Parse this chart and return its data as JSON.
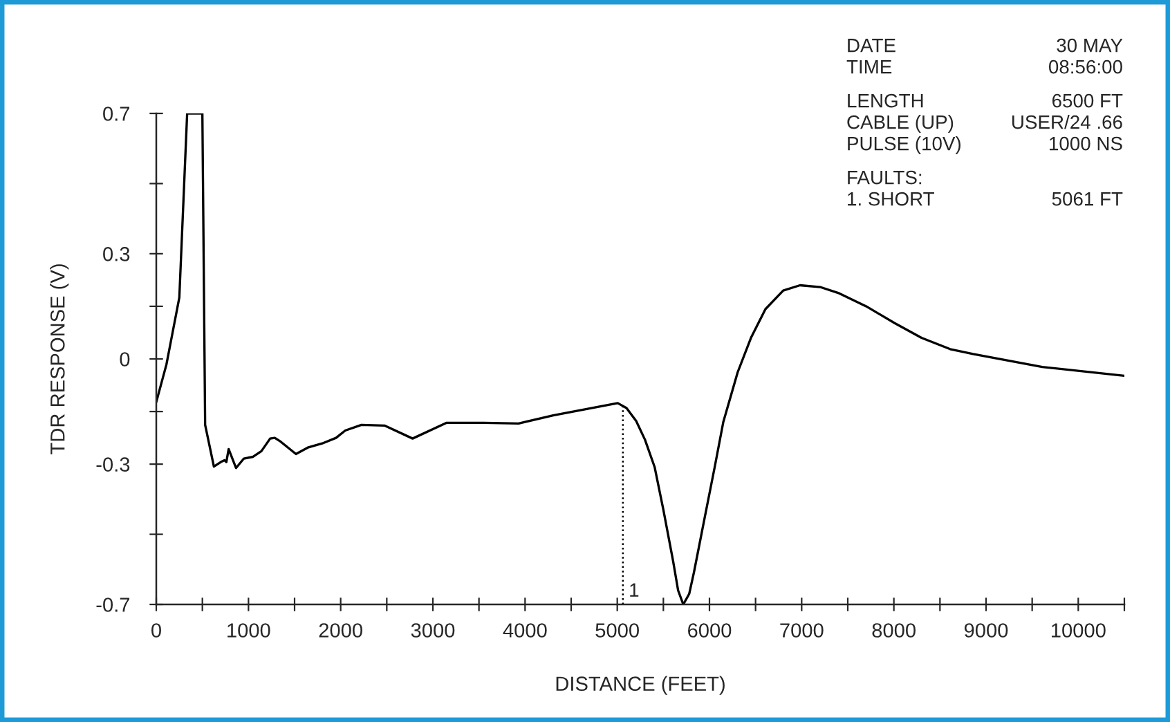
{
  "chart_data": {
    "type": "line",
    "xlabel": "DISTANCE (FEET)",
    "ylabel": "TDR RESPONSE (V)",
    "x": [
      0,
      110,
      250,
      335,
      500,
      530,
      625,
      700,
      740,
      760,
      785,
      865,
      950,
      1050,
      1140,
      1235,
      1285,
      1350,
      1515,
      1650,
      1800,
      1950,
      2050,
      2225,
      2475,
      2780,
      3150,
      3550,
      3930,
      4305,
      5005,
      5100,
      5205,
      5300,
      5405,
      5500,
      5606,
      5660,
      5716,
      5780,
      5832,
      5950,
      6057,
      6150,
      6306,
      6450,
      6607,
      6800,
      6982,
      7200,
      7408,
      7700,
      8009,
      8300,
      8610,
      8859,
      9610,
      10500
    ],
    "series": [
      {
        "color": "#000000",
        "values": [
          -0.123,
          -0.016,
          0.175,
          0.7,
          0.7,
          -0.188,
          -0.307,
          -0.294,
          -0.289,
          -0.294,
          -0.257,
          -0.311,
          -0.284,
          -0.279,
          -0.263,
          -0.227,
          -0.225,
          -0.236,
          -0.271,
          -0.252,
          -0.241,
          -0.225,
          -0.204,
          -0.188,
          -0.19,
          -0.227,
          -0.182,
          -0.182,
          -0.184,
          -0.161,
          -0.126,
          -0.14,
          -0.177,
          -0.23,
          -0.308,
          -0.43,
          -0.577,
          -0.66,
          -0.7,
          -0.67,
          -0.608,
          -0.45,
          -0.308,
          -0.18,
          -0.038,
          0.06,
          0.142,
          0.195,
          0.21,
          0.205,
          0.187,
          0.15,
          0.102,
          0.06,
          0.028,
          0.014,
          -0.023,
          -0.048
        ]
      }
    ],
    "xlim": [
      0,
      10500
    ],
    "xticks": [
      0,
      {
        "value": 500,
        "label": null
      },
      1000,
      {
        "value": 1500,
        "label": null
      },
      2000,
      {
        "value": 2500,
        "label": null
      },
      3000,
      {
        "value": 3500,
        "label": null
      },
      4000,
      {
        "value": 4500,
        "label": null
      },
      5000,
      {
        "value": 5500,
        "label": null
      },
      6000,
      {
        "value": 6500,
        "label": null
      },
      7000,
      {
        "value": 7500,
        "label": null
      },
      8000,
      {
        "value": 8500,
        "label": null
      },
      9000,
      {
        "value": 9500,
        "label": null
      },
      10000,
      {
        "value": 10500,
        "label": null
      }
    ],
    "ylim": [
      -0.7,
      0.7
    ],
    "yticks": [
      -0.7,
      {
        "value": -0.5,
        "label": null
      },
      -0.3,
      {
        "value": -0.15,
        "label": null
      },
      0,
      {
        "value": 0.15,
        "label": null
      },
      0.3,
      {
        "value": 0.5,
        "label": null
      },
      0.7
    ],
    "ref_lines": [
      {
        "axis": "x",
        "value": 5061,
        "color": "#000000",
        "line_style": "dotted"
      }
    ],
    "annotations": [
      {
        "text": "1",
        "x": 5061,
        "y": -0.7
      },
      "DATE",
      "30 MAY",
      "TIME",
      "08:56:00",
      "LENGTH",
      "6500 FT",
      "CABLE (UP)",
      "USER/24 .66",
      "PULSE (10V)",
      "1000 NS",
      "FAULTS:",
      "1. SHORT",
      "5061 FT"
    ],
    "grid": false,
    "legend": false,
    "marker": "none",
    "line_style": "solid"
  }
}
